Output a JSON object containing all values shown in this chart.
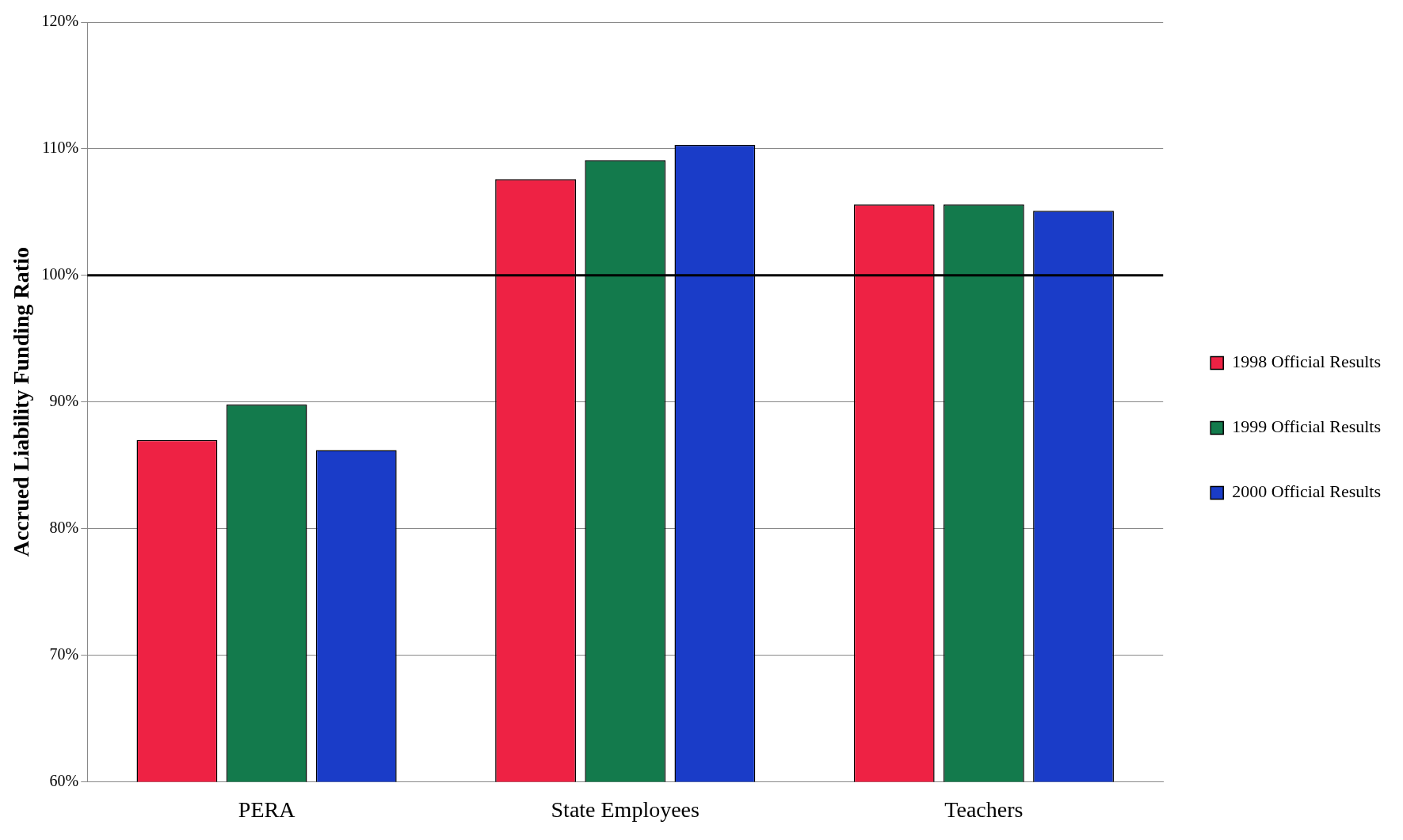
{
  "chart_data": {
    "type": "bar",
    "ylabel": "Accrued Liability Funding Ratio",
    "categories": [
      "PERA",
      "State Employees",
      "Teachers"
    ],
    "series": [
      {
        "name": "1998 Official Results",
        "color": "#ee2244",
        "values": [
          87.0,
          107.6,
          105.6
        ]
      },
      {
        "name": "1999 Official Results",
        "color": "#137a4c",
        "values": [
          89.8,
          109.1,
          105.6
        ]
      },
      {
        "name": "2000 Official Results",
        "color": "#1a3cc8",
        "values": [
          86.2,
          110.3,
          105.1
        ]
      }
    ],
    "ylim": [
      60,
      120
    ],
    "yticks": [
      {
        "value": 60,
        "label": "60%"
      },
      {
        "value": 70,
        "label": "70%"
      },
      {
        "value": 80,
        "label": "80%"
      },
      {
        "value": 90,
        "label": "90%"
      },
      {
        "value": 100,
        "label": "100%"
      },
      {
        "value": 110,
        "label": "110%"
      },
      {
        "value": 120,
        "label": "120%"
      }
    ],
    "ref_lines": [
      {
        "axis": "y",
        "value": 100,
        "label": null,
        "color": "#000000"
      }
    ],
    "grid": "y",
    "legend": "right"
  }
}
